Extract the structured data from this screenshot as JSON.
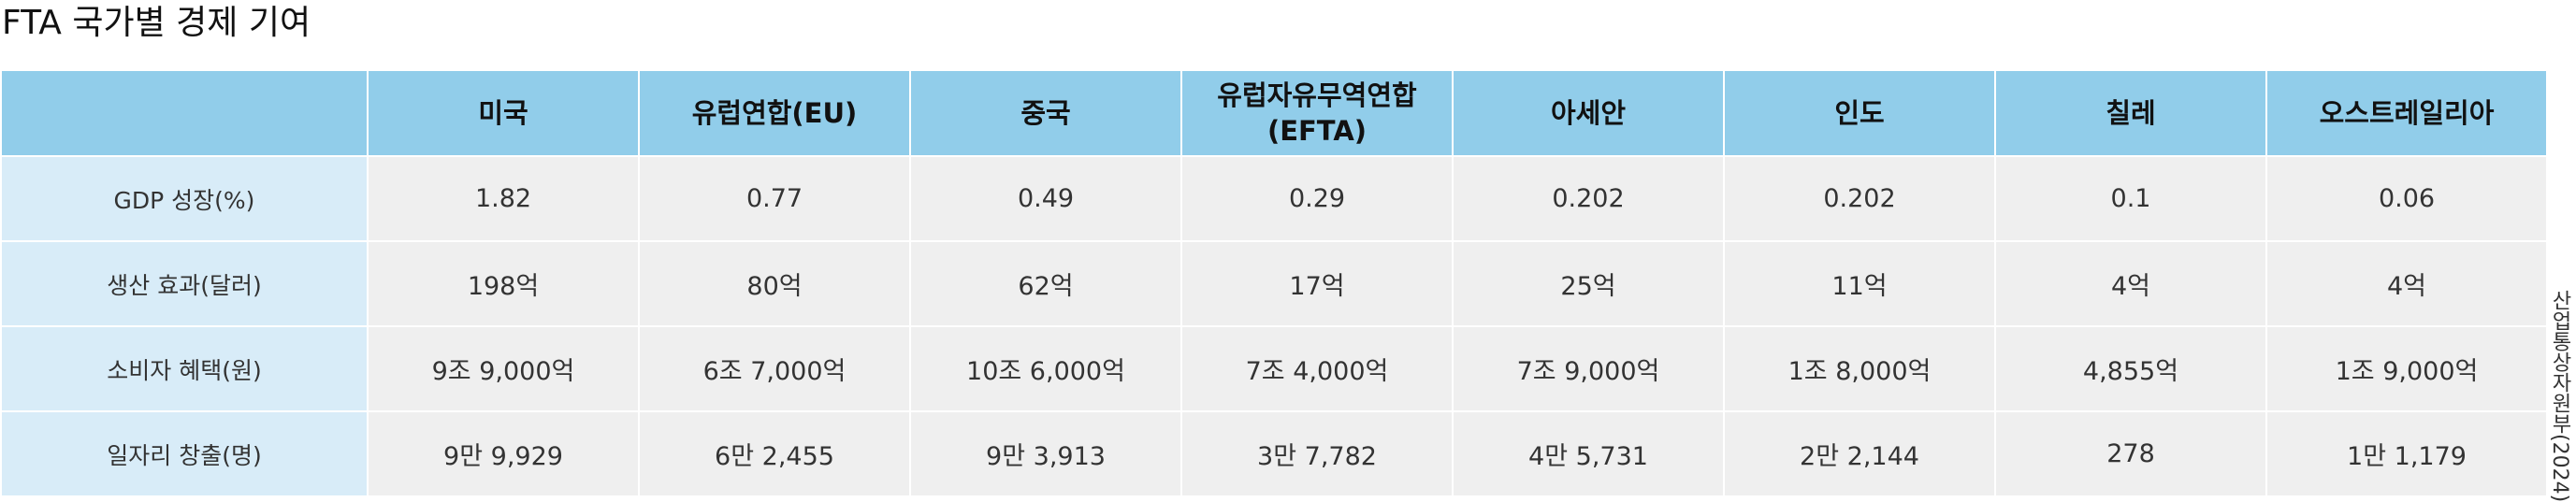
{
  "title": "FTA 국가별 경제 기여",
  "table": {
    "corner": "",
    "columns": [
      "미국",
      "유럽연합(EU)",
      "중국",
      "유럽자유무역연합\n(EFTA)",
      "아세안",
      "인도",
      "칠레",
      "오스트레일리아"
    ],
    "rows": [
      {
        "label": "GDP 성장(%)",
        "values": [
          "1.82",
          "0.77",
          "0.49",
          "0.29",
          "0.202",
          "0.202",
          "0.1",
          "0.06"
        ]
      },
      {
        "label": "생산 효과(달러)",
        "values": [
          "198억",
          "80억",
          "62억",
          "17억",
          "25억",
          "11억",
          "4억",
          "4억"
        ]
      },
      {
        "label": "소비자 혜택(원)",
        "values": [
          "9조 9,000억",
          "6조 7,000억",
          "10조 6,000억",
          "7조 4,000억",
          "7조 9,000억",
          "1조 8,000억",
          "4,855억",
          "1조 9,000억"
        ]
      },
      {
        "label": "일자리 창출(명)",
        "values": [
          "9만 9,929",
          "6만 2,455",
          "9만 3,913",
          "3만 7,782",
          "4만 5,731",
          "2만 2,144",
          "278",
          "1만 1,179"
        ]
      }
    ]
  },
  "source": "산업통상자원부(2024)"
}
